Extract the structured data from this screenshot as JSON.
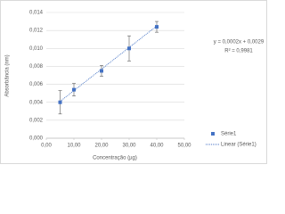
{
  "chart_data": {
    "type": "scatter",
    "x_label": "Concentração (µg)",
    "y_label": "Absorbância (nm)",
    "xlim": [
      0,
      50
    ],
    "xticks": [
      {
        "value": 0,
        "label": "0,00"
      },
      {
        "value": 10,
        "label": "10,00"
      },
      {
        "value": 20,
        "label": "20,00"
      },
      {
        "value": 30,
        "label": "30,00"
      },
      {
        "value": 40,
        "label": "40,00"
      },
      {
        "value": 50,
        "label": "50,00"
      }
    ],
    "ylim": [
      0,
      0.014
    ],
    "yticks": [
      {
        "value": 0,
        "label": "0,000"
      },
      {
        "value": 0.002,
        "label": "0,002"
      },
      {
        "value": 0.004,
        "label": "0,004"
      },
      {
        "value": 0.006,
        "label": "0,006"
      },
      {
        "value": 0.008,
        "label": "0,008"
      },
      {
        "value": 0.01,
        "label": "0,010"
      },
      {
        "value": 0.012,
        "label": "0,012"
      },
      {
        "value": 0.014,
        "label": "0,014"
      }
    ],
    "grid": true,
    "series": [
      {
        "name": "Série1",
        "color": "#4472c4",
        "x": [
          5,
          10,
          20,
          30,
          40
        ],
        "values": [
          0.004,
          0.0054,
          0.0075,
          0.01,
          0.0124
        ],
        "errors": [
          0.0013,
          0.0007,
          0.0006,
          0.0014,
          0.0006
        ]
      }
    ],
    "trendline": {
      "name": "Linear (Série1)",
      "color": "#4472c4",
      "x": [
        5,
        40
      ],
      "values": [
        0.0041,
        0.0125
      ]
    },
    "annotations": [
      "y = 0,0002x + 0,0029",
      "R² = 0,9981"
    ],
    "legend": "right"
  }
}
